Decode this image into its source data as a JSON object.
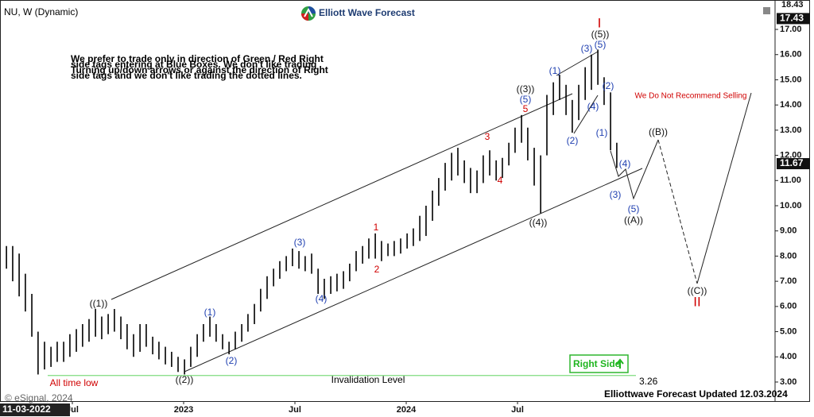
{
  "chart_data": {
    "type": "ohlc",
    "title": "NU, W (Dynamic)",
    "color": "#000000",
    "x": [
      2022.204,
      2022.232,
      2022.261,
      2022.289,
      2022.318,
      2022.346,
      2022.375,
      2022.404,
      2022.432,
      2022.461,
      2022.489,
      2022.518,
      2022.546,
      2022.575,
      2022.604,
      2022.632,
      2022.661,
      2022.689,
      2022.718,
      2022.746,
      2022.775,
      2022.804,
      2022.832,
      2022.861,
      2022.889,
      2022.918,
      2022.946,
      2022.975,
      2023.004,
      2023.032,
      2023.061,
      2023.089,
      2023.118,
      2023.146,
      2023.175,
      2023.204,
      2023.232,
      2023.261,
      2023.289,
      2023.318,
      2023.346,
      2023.375,
      2023.404,
      2023.432,
      2023.461,
      2023.489,
      2023.518,
      2023.546,
      2023.575,
      2023.604,
      2023.632,
      2023.661,
      2023.689,
      2023.718,
      2023.746,
      2023.775,
      2023.804,
      2023.832,
      2023.861,
      2023.889,
      2023.918,
      2023.946,
      2023.975,
      2024.004,
      2024.032,
      2024.061,
      2024.089,
      2024.118,
      2024.146,
      2024.175,
      2024.204,
      2024.232,
      2024.261,
      2024.289,
      2024.318,
      2024.346,
      2024.375,
      2024.404,
      2024.432,
      2024.461,
      2024.489,
      2024.518,
      2024.546,
      2024.575,
      2024.604,
      2024.632,
      2024.661,
      2024.689,
      2024.718,
      2024.746,
      2024.775,
      2024.804,
      2024.832,
      2024.861,
      2024.889,
      2024.918,
      2024.946
    ],
    "low": [
      7.5,
      7.0,
      6.4,
      5.8,
      4.8,
      3.3,
      3.5,
      3.6,
      3.8,
      3.8,
      4.0,
      4.2,
      4.4,
      4.6,
      4.8,
      4.7,
      4.9,
      5.0,
      4.7,
      4.3,
      4.0,
      4.2,
      4.4,
      4.1,
      3.9,
      3.7,
      3.6,
      3.4,
      3.3,
      3.6,
      4.0,
      4.6,
      4.8,
      4.6,
      4.3,
      4.1,
      4.3,
      4.6,
      5.0,
      5.3,
      5.8,
      6.3,
      6.8,
      7.1,
      7.4,
      7.6,
      7.5,
      7.4,
      7.3,
      6.5,
      6.3,
      6.5,
      6.6,
      6.7,
      7.0,
      7.4,
      7.7,
      7.9,
      7.9,
      7.8,
      8.0,
      8.0,
      8.1,
      8.3,
      8.4,
      8.6,
      8.8,
      9.4,
      10.0,
      10.6,
      11.0,
      11.2,
      10.9,
      10.5,
      10.5,
      10.9,
      11.2,
      11.0,
      11.1,
      11.6,
      12.1,
      12.5,
      11.8,
      10.8,
      9.7,
      12.0,
      13.6,
      14.2,
      13.6,
      12.9,
      13.4,
      14.2,
      14.6,
      14.8,
      14.0,
      12.2,
      11.5
    ],
    "high": [
      8.4,
      8.4,
      8.1,
      7.3,
      6.5,
      5.0,
      4.6,
      4.4,
      4.6,
      4.6,
      4.9,
      5.1,
      5.3,
      5.5,
      5.9,
      5.6,
      5.7,
      5.9,
      5.6,
      5.3,
      4.9,
      5.3,
      5.3,
      4.8,
      4.6,
      4.4,
      4.2,
      4.0,
      3.9,
      4.4,
      4.9,
      5.3,
      5.6,
      5.3,
      4.9,
      4.6,
      5.0,
      5.3,
      5.7,
      6.1,
      6.7,
      7.2,
      7.5,
      7.8,
      8.0,
      8.3,
      8.2,
      8.0,
      8.1,
      7.5,
      7.1,
      7.2,
      7.3,
      7.4,
      7.7,
      8.2,
      8.4,
      8.7,
      8.9,
      8.6,
      8.5,
      8.6,
      8.7,
      8.9,
      9.1,
      9.6,
      10.0,
      10.6,
      11.1,
      11.7,
      12.1,
      12.3,
      11.8,
      11.5,
      11.4,
      12.0,
      12.2,
      11.8,
      11.9,
      12.5,
      13.1,
      13.6,
      13.1,
      12.3,
      12.0,
      14.4,
      14.9,
      15.2,
      14.8,
      14.2,
      14.8,
      15.5,
      16.0,
      16.2,
      15.1,
      14.5,
      12.5
    ],
    "xlim": [
      2022.175,
      2025.657
    ],
    "ylim": [
      2.4,
      18.01
    ],
    "xticks": [
      {
        "value": 2022.5,
        "label": "Jul"
      },
      2023,
      {
        "value": 2023.5,
        "label": "Jul"
      },
      2024,
      {
        "value": 2024.5,
        "label": "Jul"
      }
    ],
    "yticks": [
      {
        "value": 3,
        "label": "3.00"
      },
      {
        "value": 4,
        "label": "4.00"
      },
      {
        "value": 5,
        "label": "5.00"
      },
      {
        "value": 6,
        "label": "6.00"
      },
      {
        "value": 7,
        "label": "7.00"
      },
      {
        "value": 8,
        "label": "8.00"
      },
      {
        "value": 9,
        "label": "9.00"
      },
      {
        "value": 10,
        "label": "10.00"
      },
      {
        "value": 11,
        "label": "11.00"
      },
      {
        "value": 12,
        "label": "12.00"
      },
      {
        "value": 13,
        "label": "13.00"
      },
      {
        "value": 14,
        "label": "14.00"
      },
      {
        "value": 15,
        "label": "15.00"
      },
      {
        "value": 16,
        "label": "16.00"
      },
      {
        "value": 17,
        "label": "17.00"
      }
    ],
    "top_label": "18.43",
    "price_markers": [
      17.43,
      11.67
    ],
    "cursor_date": "11-03-2022",
    "invalidation": {
      "label": "Invalidation Level",
      "value": 3.26,
      "color": "#7fdc7f"
    },
    "annotations": [
      "((1))",
      "((2))",
      "((3))",
      "((4))",
      "((5))",
      "((A))",
      "((B))",
      "((C))",
      "(1)",
      "(2)",
      "(3)",
      "(4)",
      "(5)",
      "(1)",
      "(2)",
      "(3)",
      "(5)",
      "(4)",
      "(2)",
      "(1)",
      "(4)",
      "(3)",
      "(5)",
      "5",
      "3",
      "4",
      "1",
      "2",
      "I",
      "II",
      "All time low",
      "We Do Not Recommend Selling"
    ]
  },
  "header": {
    "brand": "Elliott Wave Forecast"
  },
  "note": [
    "We prefer to trade only in direction of Green / Red Right",
    "side tags entering at Blue Boxes. We don't like trading",
    "Turning up/down arrows or against the direction of Right",
    "side tags and we don't like trading the dotted lines."
  ],
  "badge": "Right Side",
  "footer": {
    "updated": "Elliottwave Forecast Updated 12.03.2024",
    "copyright": "© eSignal, 2024"
  }
}
